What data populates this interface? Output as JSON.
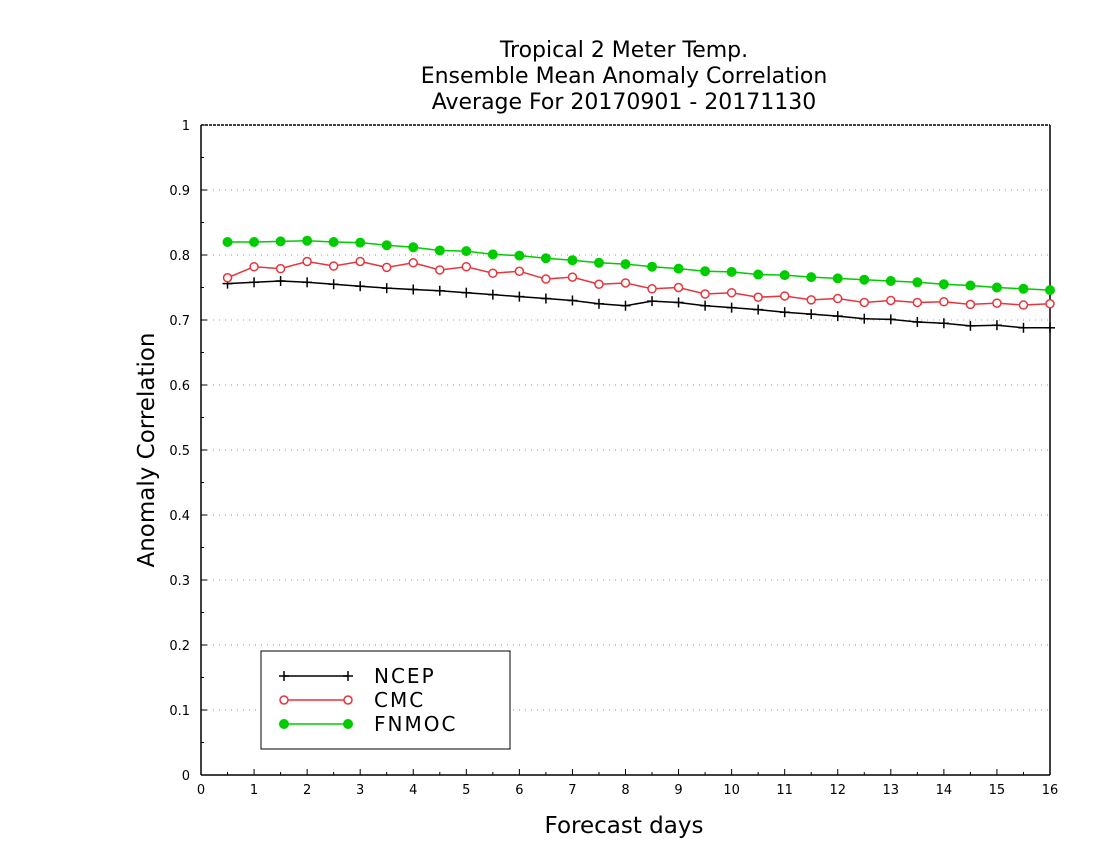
{
  "chart_data": {
    "type": "line",
    "title_lines": [
      "Tropical 2 Meter Temp.",
      "Ensemble Mean Anomaly Correlation",
      "Average For 20170901 - 20171130"
    ],
    "xlabel": "Forecast days",
    "ylabel": "Anomaly Correlation",
    "xlim": [
      0,
      16
    ],
    "ylim": [
      0,
      1
    ],
    "xticks": [
      "0",
      "1",
      "2",
      "3",
      "4",
      "5",
      "6",
      "7",
      "8",
      "9",
      "10",
      "11",
      "12",
      "13",
      "14",
      "15",
      "16"
    ],
    "yticks": [
      "0",
      "0.1",
      "0.2",
      "0.3",
      "0.4",
      "0.5",
      "0.6",
      "0.7",
      "0.8",
      "0.9",
      "1"
    ],
    "grid": "horizontal dotted",
    "legend_position": "bottom-left",
    "x": [
      0.5,
      1,
      1.5,
      2,
      2.5,
      3,
      3.5,
      4,
      4.5,
      5,
      5.5,
      6,
      6.5,
      7,
      7.5,
      8,
      8.5,
      9,
      9.5,
      10,
      10.5,
      11,
      11.5,
      12,
      12.5,
      13,
      13.5,
      14,
      14.5,
      15,
      15.5,
      16
    ],
    "series": [
      {
        "name": "NCEP",
        "color": "#000000",
        "marker": "plus",
        "values": [
          0.756,
          0.758,
          0.76,
          0.758,
          0.755,
          0.752,
          0.749,
          0.747,
          0.745,
          0.742,
          0.739,
          0.736,
          0.733,
          0.73,
          0.725,
          0.722,
          0.729,
          0.727,
          0.722,
          0.719,
          0.716,
          0.712,
          0.709,
          0.706,
          0.702,
          0.701,
          0.697,
          0.695,
          0.691,
          0.692,
          0.688,
          0.688
        ]
      },
      {
        "name": "CMC",
        "color": "#e8343c",
        "marker": "open-circle",
        "values": [
          0.765,
          0.782,
          0.779,
          0.79,
          0.783,
          0.79,
          0.781,
          0.788,
          0.777,
          0.782,
          0.772,
          0.775,
          0.763,
          0.766,
          0.755,
          0.757,
          0.748,
          0.75,
          0.74,
          0.742,
          0.735,
          0.737,
          0.731,
          0.733,
          0.727,
          0.73,
          0.727,
          0.728,
          0.724,
          0.726,
          0.723,
          0.725
        ]
      },
      {
        "name": "FNMOC",
        "color": "#00cc00",
        "marker": "filled-circle",
        "values": [
          0.82,
          0.82,
          0.821,
          0.822,
          0.82,
          0.819,
          0.815,
          0.812,
          0.807,
          0.806,
          0.801,
          0.799,
          0.795,
          0.792,
          0.788,
          0.786,
          0.782,
          0.779,
          0.775,
          0.774,
          0.77,
          0.769,
          0.766,
          0.764,
          0.762,
          0.76,
          0.758,
          0.755,
          0.753,
          0.75,
          0.748,
          0.746
        ]
      }
    ]
  }
}
